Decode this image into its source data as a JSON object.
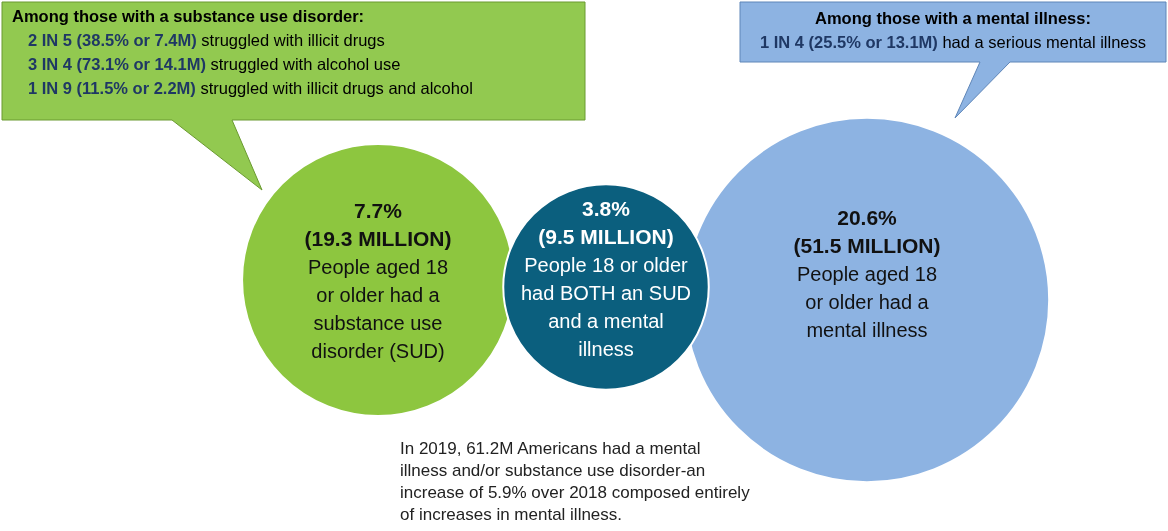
{
  "chart_data": {
    "type": "other",
    "categories": [
      "People aged 18\nor older had a\nsubstance use\ndisorder (SUD)",
      "People 18 or older\nhad BOTH an SUD\nand a mental\nillness",
      "People aged 18\nor older had a\nmental illness"
    ],
    "values": [
      7.7,
      3.8,
      20.6
    ],
    "value_labels": [
      "7.7%\n(19.3 MILLION)",
      "3.8%\n(9.5 MILLION)",
      "20.6%\n(51.5 MILLION)"
    ],
    "colors": [
      "#8dc63f",
      "#0b5f7e",
      "#8db3e2"
    ],
    "annotations": [
      "Among those with a substance use disorder:\n2 IN 5 (38.5% or 7.4M) struggled with illicit drugs\n3 IN 4 (73.1% or 14.1M) struggled with alcohol use\n1 IN 9 (11.5% or 2.2M) struggled with illicit drugs and alcohol",
      "Among those with a mental illness:\n1 IN 4 (25.5% or 13.1M) had a serious mental illness",
      "In 2019, 61.2M Americans had a mental\nillness and/or substance use disorder-an\nincrease of 5.9% over 2018 composed entirely\nof increases in mental illness."
    ]
  }
}
